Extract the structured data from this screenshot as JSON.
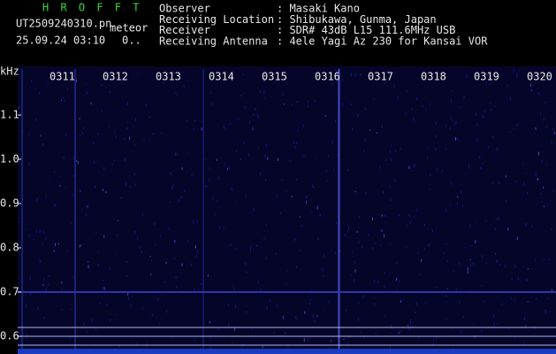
{
  "header": {
    "app": "H R O F F T",
    "file": "UT2509240310.pn",
    "mode": "meteor",
    "datetime": "25.09.24 03:10",
    "counter": "0..",
    "fields": [
      {
        "label": "Observer",
        "value": ": Masaki Kano"
      },
      {
        "label": "Receiving Location",
        "value": ": Shibukawa, Gunma, Japan"
      },
      {
        "label": "Receiver",
        "value": ": SDR# 43dB L15 111.6MHz USB"
      },
      {
        "label": "Receiving Antenna",
        "value": ": 4ele Yagi Az 230 for Kansai VOR"
      }
    ]
  },
  "plot": {
    "unit": "kHz",
    "freq_ticks": [
      "1.1",
      "1.0",
      "0.9",
      "0.8",
      "0.7",
      "0.6"
    ],
    "time_ticks": [
      "0311",
      "0312",
      "0313",
      "0314",
      "0315",
      "0316",
      "0317",
      "0318",
      "0319",
      "0320"
    ]
  }
}
